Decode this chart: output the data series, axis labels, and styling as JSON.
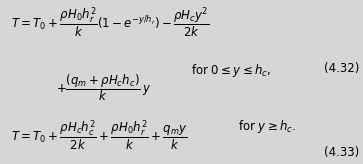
{
  "background_color": "#d6d6d6",
  "eq1_line1": "$T = T_0 + \\dfrac{\\rho H_0 h_r^2}{k}\\left(1 - e^{-y/h_r}\\right) - \\dfrac{\\rho H_c y^2}{2k}$",
  "eq1_line2": "$+ \\dfrac{(q_m + \\rho H_c h_c)}{k}\\,y$",
  "eq1_condition": "for $0 \\leq y \\leq h_c$,",
  "eq1_number": "(4.32)",
  "eq2_line1": "$T = T_0 + \\dfrac{\\rho H_c h_c^2}{2k} + \\dfrac{\\rho H_0 h_r^2}{k} + \\dfrac{q_m y}{k}$",
  "eq2_condition": "for $y \\geq h_c$.",
  "eq2_number": "(4.33)",
  "fontsize": 8.5
}
